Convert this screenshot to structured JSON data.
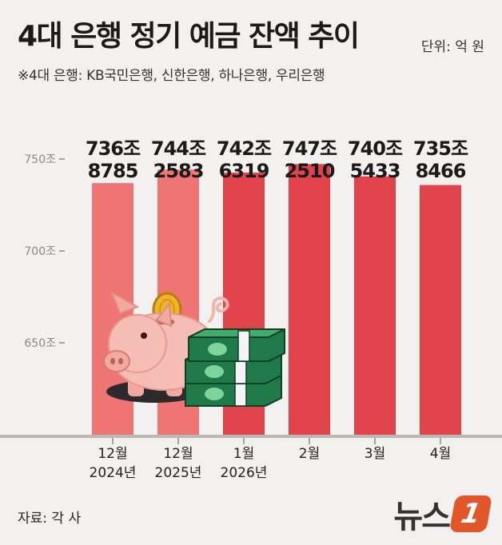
{
  "title": "4대 은행 정기 예금 잔액 추이",
  "unit": "단위: 억 원",
  "subtitle": "※4대 은행: KB국민은행, 신한은행, 하나은행, 우리은행",
  "source": "자료: 각 사",
  "logo": {
    "text": "뉴스",
    "mark": "1"
  },
  "colors": {
    "bar_past": "#ef7474",
    "bar_current": "#e0444a",
    "background": "#f3f1ef"
  },
  "illustration": {
    "icons": [
      "piggy-bank-icon",
      "coin-icon",
      "money-stack-icon"
    ]
  },
  "chart_data": {
    "type": "bar",
    "title": "4대 은행 정기 예금 잔액 추이",
    "ylabel": "",
    "ylim": [
      600,
      752
    ],
    "yticks": [
      {
        "value": 650,
        "label": "650조"
      },
      {
        "value": 700,
        "label": "700조"
      },
      {
        "value": 750,
        "label": "750조"
      }
    ],
    "categories": [
      {
        "line1": "12월",
        "line2": "2024년"
      },
      {
        "line1": "12월",
        "line2": "2025년"
      },
      {
        "line1": "1월",
        "line2": "2026년"
      },
      {
        "line1": "2월",
        "line2": ""
      },
      {
        "line1": "3월",
        "line2": ""
      },
      {
        "line1": "4월",
        "line2": ""
      }
    ],
    "values": [
      736.8785,
      744.2583,
      742.6319,
      747.251,
      740.5433,
      735.8466
    ],
    "value_labels": [
      {
        "jo": "736조",
        "eok": "8785"
      },
      {
        "jo": "744조",
        "eok": "2583"
      },
      {
        "jo": "742조",
        "eok": "6319"
      },
      {
        "jo": "747조",
        "eok": "2510"
      },
      {
        "jo": "740조",
        "eok": "5433"
      },
      {
        "jo": "735조",
        "eok": "8466"
      }
    ],
    "highlight": [
      false,
      false,
      true,
      true,
      true,
      true
    ],
    "grid": false,
    "legend": "none"
  }
}
